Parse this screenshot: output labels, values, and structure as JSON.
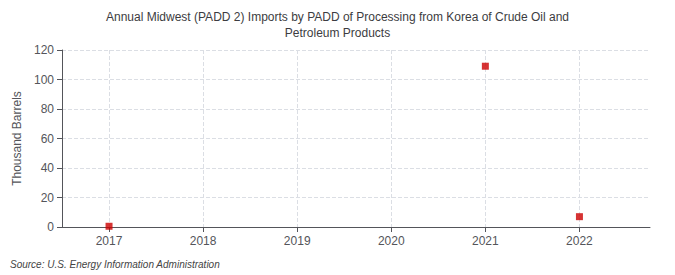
{
  "chart_data": {
    "type": "scatter",
    "title": "Annual Midwest (PADD 2) Imports by PADD of Processing from Korea of Crude Oil and\nPetroleum Products",
    "ylabel": "Thousand Barrels",
    "source": "Source: U.S. Energy Information Administration",
    "x": [
      2017,
      2021,
      2022
    ],
    "values": [
      0.5,
      109,
      7
    ],
    "color": "#cc0000",
    "marker": "square",
    "xlim": [
      2016.5,
      2022.75
    ],
    "xticks": [
      2017,
      2018,
      2019,
      2020,
      2021,
      2022
    ],
    "ylim": [
      0,
      120
    ],
    "yticks": [
      0,
      20,
      40,
      60,
      80,
      100,
      120
    ],
    "grid": true
  }
}
